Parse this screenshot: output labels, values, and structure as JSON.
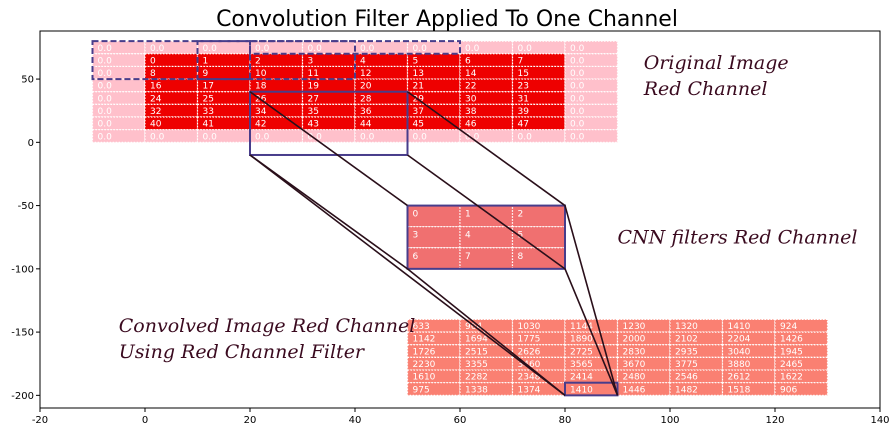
{
  "chart_data": {
    "type": "heatmap",
    "title": "Convolution Filter Applied To One Channel",
    "xlabel": "",
    "ylabel": "",
    "xlim": [
      -20,
      140
    ],
    "ylim": [
      -210,
      88
    ],
    "xticks": [
      -20,
      0,
      20,
      40,
      60,
      80,
      100,
      120,
      140
    ],
    "yticks": [
      50,
      0,
      -50,
      -100,
      -150,
      -200
    ],
    "grid": false,
    "colors": {
      "padding": "#ffc0cb",
      "image": "#ee0000",
      "filter": "#f07070",
      "output": "#fa8072",
      "box": "#483d8b",
      "connector": "#2a0f1a",
      "cell_border": "#ffffff"
    },
    "image_grid": {
      "rows": 8,
      "cols": 10,
      "x0": -10,
      "top": 80,
      "cell_w": 10,
      "cell_h": 10,
      "pad": 1,
      "values": [
        [
          "0.0",
          "0.0",
          "0.0",
          "0.0",
          "0.0",
          "0.0",
          "0.0",
          "0.0",
          "0.0",
          "0.0"
        ],
        [
          "0.0",
          "0",
          "1",
          "2",
          "3",
          "4",
          "5",
          "6",
          "7",
          "0.0"
        ],
        [
          "0.0",
          "8",
          "9",
          "10",
          "11",
          "12",
          "13",
          "14",
          "15",
          "0.0"
        ],
        [
          "0.0",
          "16",
          "17",
          "18",
          "19",
          "20",
          "21",
          "22",
          "23",
          "0.0"
        ],
        [
          "0.0",
          "24",
          "25",
          "26",
          "27",
          "28",
          "29",
          "30",
          "31",
          "0.0"
        ],
        [
          "0.0",
          "32",
          "33",
          "34",
          "35",
          "36",
          "37",
          "38",
          "39",
          "0.0"
        ],
        [
          "0.0",
          "40",
          "41",
          "42",
          "43",
          "44",
          "45",
          "46",
          "47",
          "0.0"
        ],
        [
          "0.0",
          "0.0",
          "0.0",
          "0.0",
          "0.0",
          "0.0",
          "0.0",
          "0.0",
          "0.0",
          "0.0"
        ]
      ]
    },
    "filter_grid": {
      "rows": 3,
      "cols": 3,
      "x0": 50,
      "top": -50,
      "cell_w": 10,
      "cell_h": 16.67,
      "values": [
        [
          "0",
          "1",
          "2"
        ],
        [
          "3",
          "4",
          "5"
        ],
        [
          "6",
          "7",
          "8"
        ]
      ]
    },
    "output_grid": {
      "rows": 6,
      "cols": 8,
      "x0": 50,
      "top": -140,
      "cell_w": 10,
      "cell_h": 10,
      "values": [
        [
          "633",
          "964",
          "1030",
          "1144",
          "1230",
          "1320",
          "1410",
          "924"
        ],
        [
          "1142",
          "1694",
          "1775",
          "1890",
          "2000",
          "2102",
          "2204",
          "1426"
        ],
        [
          "1726",
          "2515",
          "2626",
          "2725",
          "2830",
          "2935",
          "3040",
          "1945"
        ],
        [
          "2230",
          "3355",
          "3460",
          "3565",
          "3670",
          "3775",
          "3880",
          "2465"
        ],
        [
          "1610",
          "2282",
          "2348",
          "2414",
          "2480",
          "2546",
          "2612",
          "1622"
        ],
        [
          "975",
          "1338",
          "1374",
          "1410",
          "1446",
          "1482",
          "1518",
          "906"
        ]
      ]
    },
    "boxes": {
      "dashed_windows": [
        [
          -10,
          80,
          30,
          30
        ],
        [
          10,
          80,
          30,
          30
        ],
        [
          20,
          80,
          40,
          10
        ]
      ],
      "solid_window": [
        20,
        40,
        30,
        50
      ],
      "filter_box": [
        50,
        -50,
        30,
        50
      ],
      "output_box": [
        80,
        -190,
        10,
        10
      ]
    },
    "annotations": [
      {
        "lines": [
          "Original Image",
          "Red Channel"
        ],
        "x": 95,
        "y": 58
      },
      {
        "lines": [
          "CNN filters Red Channel"
        ],
        "x": 90,
        "y": -80
      },
      {
        "lines": [
          "Convolved Image Red Channel",
          "Using Red Channel Filter"
        ],
        "x": -5,
        "y": -150
      }
    ]
  }
}
